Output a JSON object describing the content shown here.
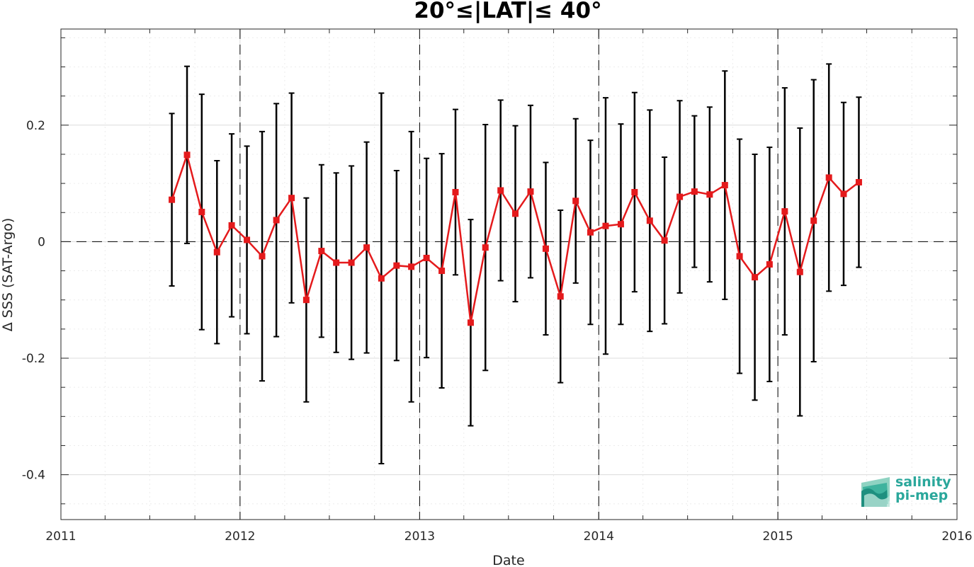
{
  "chart_data": {
    "type": "line",
    "title": "20°≤|LAT|≤ 40°",
    "xlabel": "Date",
    "ylabel": "Δ SSS (SAT-Argo)",
    "xlim": [
      "2011-01-01",
      "2016-01-01"
    ],
    "ylim": [
      -0.477,
      0.365
    ],
    "x_ticks": [
      "2011",
      "2012",
      "2013",
      "2014",
      "2015",
      "2016"
    ],
    "y_ticks": [
      -0.4,
      -0.2,
      0,
      0.2
    ],
    "y_tick_labels": [
      "-0.4",
      "-0.2",
      "0",
      "0.2"
    ],
    "grid": true,
    "year_separators": [
      "2012-01-01",
      "2013-01-01",
      "2014-01-01",
      "2015-01-01"
    ],
    "zero_line": 0,
    "series": [
      {
        "color": "#e41a1c",
        "marker": "square",
        "x": [
          "2011-08-15",
          "2011-09-15",
          "2011-10-15",
          "2011-11-15",
          "2011-12-15",
          "2012-01-15",
          "2012-02-15",
          "2012-03-15",
          "2012-04-15",
          "2012-05-15",
          "2012-06-15",
          "2012-07-15",
          "2012-08-15",
          "2012-09-15",
          "2012-10-15",
          "2012-11-15",
          "2012-12-15",
          "2013-01-15",
          "2013-02-15",
          "2013-03-15",
          "2013-04-15",
          "2013-05-15",
          "2013-06-15",
          "2013-07-15",
          "2013-08-15",
          "2013-09-15",
          "2013-10-15",
          "2013-11-15",
          "2013-12-15",
          "2014-01-15",
          "2014-02-15",
          "2014-03-15",
          "2014-04-15",
          "2014-05-15",
          "2014-06-15",
          "2014-07-15",
          "2014-08-15",
          "2014-09-15",
          "2014-10-15",
          "2014-11-15",
          "2014-12-15",
          "2015-01-15",
          "2015-02-15",
          "2015-03-15",
          "2015-04-15",
          "2015-05-15",
          "2015-06-15"
        ],
        "y": [
          0.072,
          0.149,
          0.051,
          -0.018,
          0.028,
          0.003,
          -0.025,
          0.037,
          0.075,
          -0.1,
          -0.016,
          -0.036,
          -0.036,
          -0.01,
          -0.063,
          -0.041,
          -0.043,
          -0.028,
          -0.05,
          0.085,
          -0.139,
          -0.01,
          0.088,
          0.048,
          0.086,
          -0.012,
          -0.094,
          0.07,
          0.016,
          0.027,
          0.03,
          0.085,
          0.036,
          0.002,
          0.077,
          0.086,
          0.081,
          0.097,
          -0.025,
          -0.061,
          -0.039,
          0.052,
          -0.052,
          0.036,
          0.11,
          0.082,
          0.102
        ],
        "err": [
          0.148,
          0.152,
          0.202,
          0.157,
          0.157,
          0.161,
          0.214,
          0.2,
          0.18,
          0.175,
          0.148,
          0.154,
          0.166,
          0.181,
          0.318,
          0.163,
          0.232,
          0.171,
          0.201,
          0.142,
          0.177,
          0.211,
          0.155,
          0.151,
          0.148,
          0.148,
          0.148,
          0.141,
          0.158,
          0.22,
          0.172,
          0.171,
          0.19,
          0.143,
          0.165,
          0.13,
          0.15,
          0.196,
          0.201,
          0.211,
          0.201,
          0.212,
          0.247,
          0.242,
          0.195,
          0.157,
          0.146
        ]
      }
    ]
  },
  "logo": {
    "line1": "salinity",
    "line2": "pi-mep"
  }
}
